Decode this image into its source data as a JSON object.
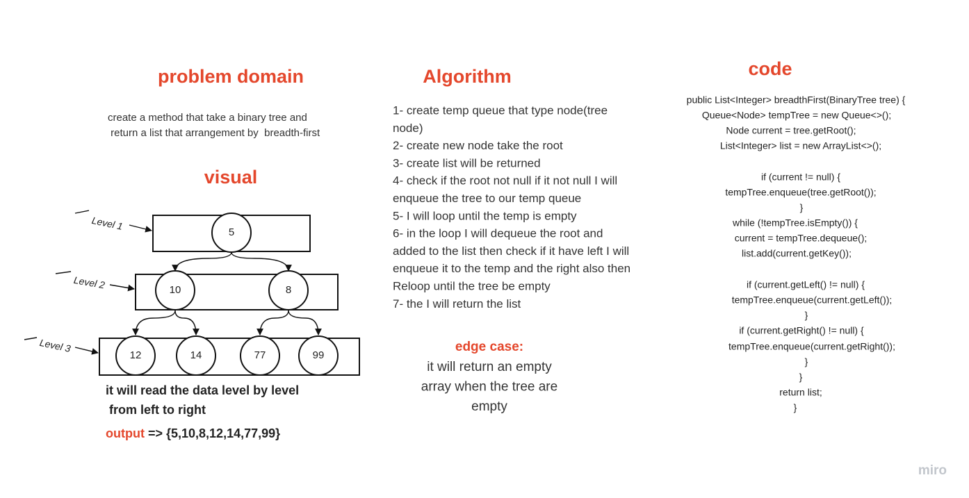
{
  "problem_domain": {
    "title": "problem domain",
    "lines": [
      "create a method that take a binary tree and",
      " return a list that arrangement by  breadth-first"
    ]
  },
  "visual": {
    "title": "visual",
    "levels": [
      "Level 1",
      "Level 2",
      "Level 3"
    ],
    "nodes": [
      "5",
      "10",
      "8",
      "12",
      "14",
      "77",
      "99"
    ],
    "description": [
      "it will read the data level by level",
      " from left to right"
    ],
    "output_label": "output",
    "output_value": "=> {5,10,8,12,14,77,99}"
  },
  "algorithm": {
    "title": "Algorithm",
    "lines": [
      "1- create temp queue that type node(tree",
      "node)",
      "2- create new node  take the root",
      "3- create list will be returned",
      "4- check if the root not null if it not null I will",
      "enqueue the tree to our temp queue",
      "5- I will loop until the temp is empty",
      "6- in the loop I will dequeue the root and",
      "added to the list then check if it have left I will",
      "enqueue it to the temp and the right also then",
      "Reloop until the tree be empty",
      "7- the I will return the list"
    ]
  },
  "edge_case": {
    "title": "edge case:",
    "lines": [
      "it will return an empty",
      "array when the tree are",
      "empty"
    ]
  },
  "code": {
    "title": "code",
    "lines": [
      "public List<Integer> breadthFirst(BinaryTree tree) {",
      "Queue<Node> tempTree = new Queue<>();",
      "Node current = tree.getRoot();",
      "List<Integer> list = new ArrayList<>();",
      "if (current != null) {",
      "tempTree.enqueue(tree.getRoot());",
      "}",
      "while (!tempTree.isEmpty()) {",
      "current = tempTree.dequeue();",
      "list.add(current.getKey());",
      "if (current.getLeft() != null) {",
      "tempTree.enqueue(current.getLeft());",
      "}",
      "if (current.getRight() != null) {",
      "tempTree.enqueue(current.getRight());",
      "}",
      "}",
      "return list;",
      "}"
    ]
  },
  "watermark": "miro"
}
